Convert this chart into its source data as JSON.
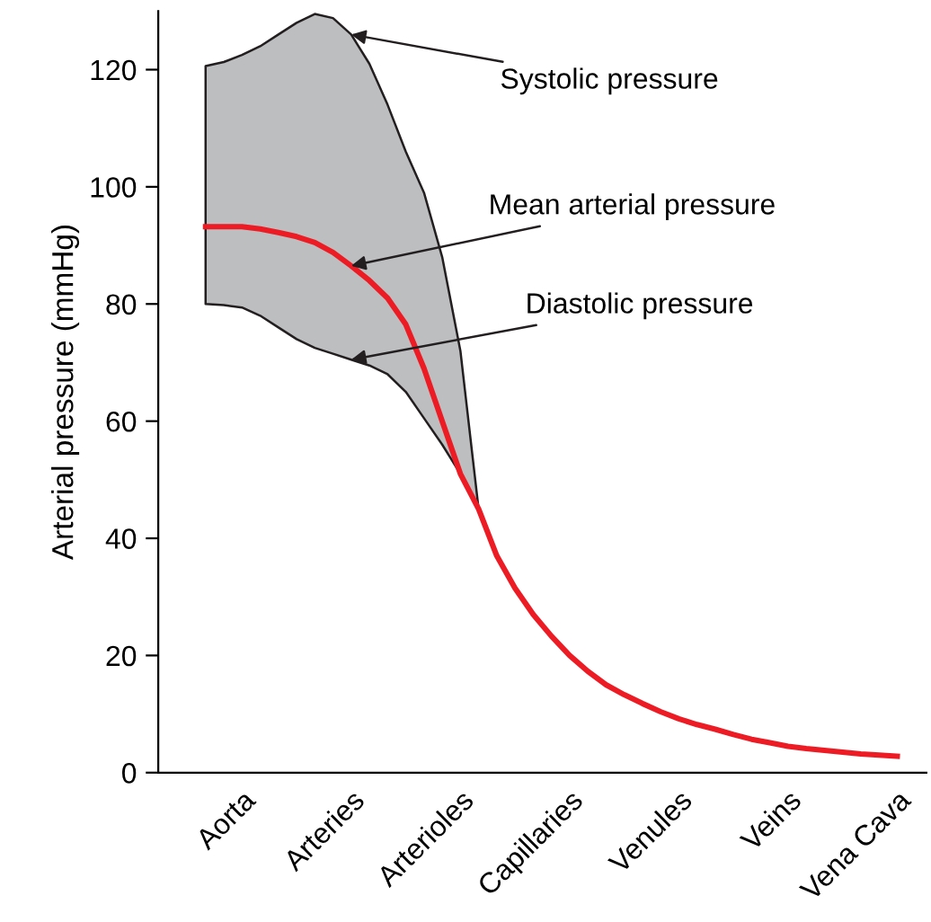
{
  "chart_data": {
    "type": "line",
    "ylabel": "Arterial pressure (mmHg)",
    "ylim": [
      0,
      130
    ],
    "categories": [
      null,
      null,
      "Aorta",
      null,
      null,
      null,
      null,
      null,
      "Arteries",
      null,
      null,
      null,
      null,
      null,
      "Arterioles",
      null,
      null,
      null,
      null,
      null,
      "Capillaries",
      null,
      null,
      null,
      null,
      null,
      "Venules",
      null,
      null,
      null,
      null,
      null,
      "Veins",
      null,
      null,
      null,
      null,
      null,
      "Vena Cava"
    ],
    "yticks": [
      0,
      20,
      40,
      60,
      80,
      100,
      120
    ],
    "grid": false,
    "marker": "none",
    "line_style": "solid",
    "series": [
      {
        "color": "#ed1c24",
        "values": [
          93.2,
          93.2,
          93.2,
          92.8,
          92.2,
          91.5,
          90.5,
          88.8,
          86.5,
          84,
          81,
          76.5,
          69,
          60,
          51,
          45,
          37,
          31.5,
          27,
          23.3,
          20,
          17.3,
          15,
          13.3,
          11.8,
          10.4,
          9.2,
          8.2,
          7.4,
          6.5,
          5.7,
          5.1,
          4.5,
          4.1,
          3.8,
          3.5,
          3.2,
          3.0,
          2.8
        ],
        "upper": [
          120.6,
          121.3,
          122.5,
          124,
          126,
          128,
          129.5,
          128.8,
          126,
          121,
          114,
          106,
          99,
          88,
          72,
          45,
          null,
          null,
          null,
          null,
          null,
          null,
          null,
          null,
          null,
          null,
          null,
          null,
          null,
          null,
          null,
          null,
          null,
          null,
          null,
          null,
          null,
          null,
          null
        ],
        "lower": [
          80,
          79.8,
          79.4,
          78,
          76,
          74,
          72.5,
          71.5,
          70.5,
          69.5,
          68,
          65,
          60.5,
          56,
          51,
          45,
          null,
          null,
          null,
          null,
          null,
          null,
          null,
          null,
          null,
          null,
          null,
          null,
          null,
          null,
          null,
          null,
          null,
          null,
          null,
          null,
          null,
          null,
          null
        ]
      }
    ],
    "annotations": [
      {
        "text": "Systolic pressure",
        "x": "Arteries",
        "y": 126
      },
      {
        "text": "Mean arterial pressure",
        "x": "Arteries",
        "y": 86.5
      },
      {
        "text": "Diastolic pressure",
        "x": "Arteries",
        "y": 70.5
      }
    ]
  }
}
